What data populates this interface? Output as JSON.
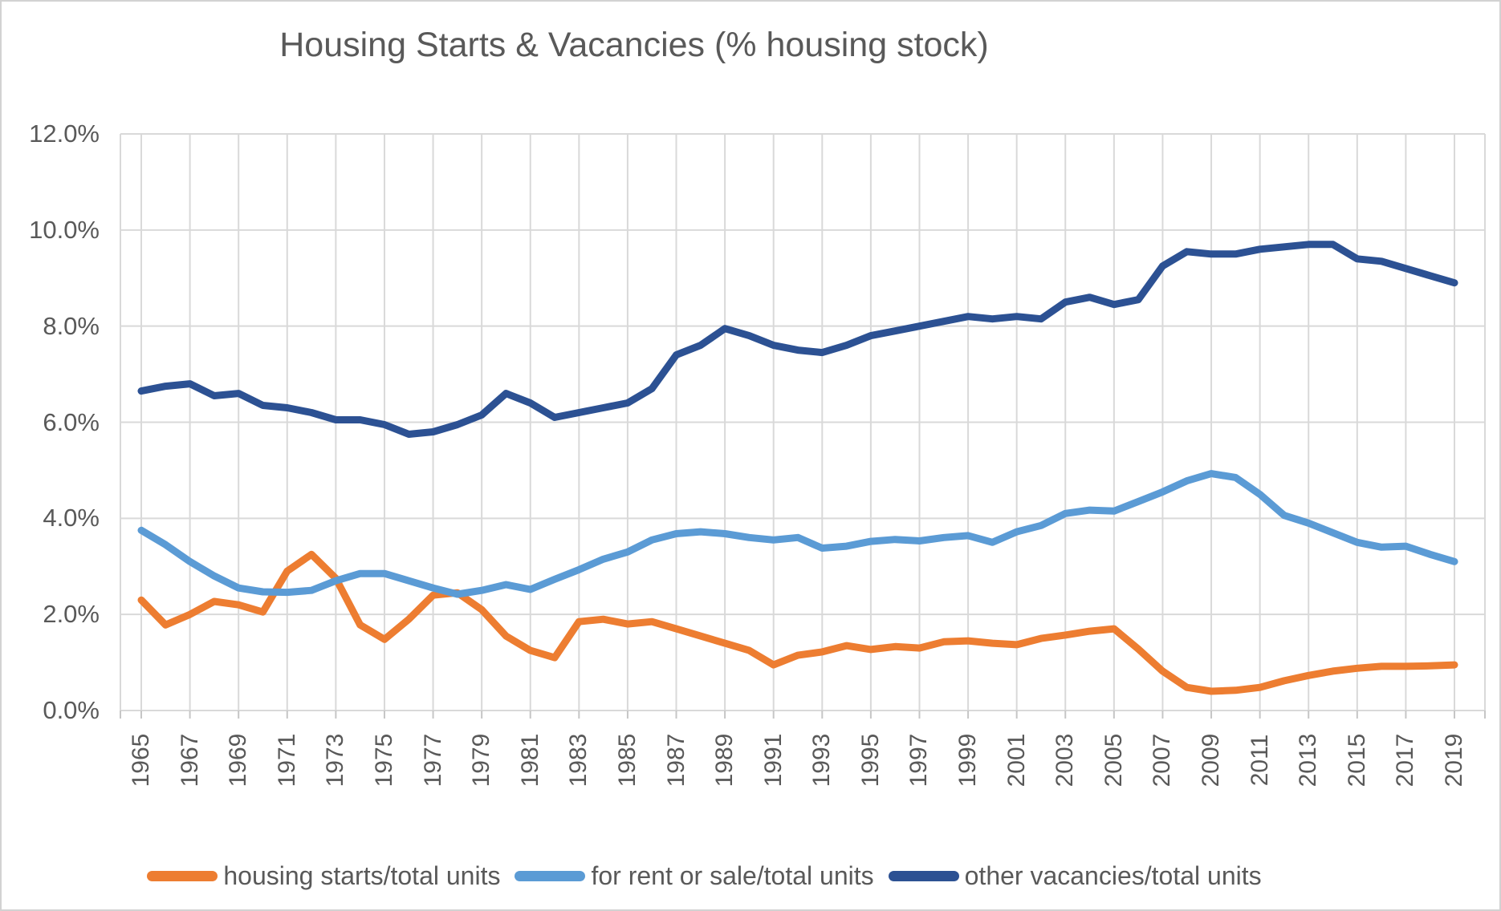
{
  "chart_data": {
    "type": "line",
    "title": "Housing Starts & Vacancies (% housing stock)",
    "xlabel": "",
    "ylabel": "",
    "ylim": [
      0,
      12
    ],
    "y_tick_step": 2,
    "grid": true,
    "legend_position": "bottom",
    "x_start": 1965,
    "x_end": 2019,
    "x_tick_labels": [
      "1965",
      "1967",
      "1969",
      "1971",
      "1973",
      "1975",
      "1977",
      "1979",
      "1981",
      "1983",
      "1985",
      "1987",
      "1989",
      "1991",
      "1993",
      "1995",
      "1997",
      "1999",
      "2001",
      "2003",
      "2005",
      "2007",
      "2009",
      "2011",
      "2013",
      "2015",
      "2017",
      "2019"
    ],
    "y_tick_labels": [
      "0.0%",
      "2.0%",
      "4.0%",
      "6.0%",
      "8.0%",
      "10.0%",
      "12.0%"
    ],
    "series": [
      {
        "name": "housing starts/total units",
        "color": "#ED7D31",
        "values": [
          2.3,
          1.78,
          2.0,
          2.27,
          2.2,
          2.05,
          2.9,
          3.25,
          2.75,
          1.78,
          1.48,
          1.9,
          2.4,
          2.45,
          2.1,
          1.55,
          1.25,
          1.1,
          1.85,
          1.9,
          1.8,
          1.85,
          1.7,
          1.55,
          1.4,
          1.25,
          0.95,
          1.15,
          1.22,
          1.35,
          1.27,
          1.33,
          1.3,
          1.43,
          1.45,
          1.4,
          1.37,
          1.5,
          1.57,
          1.65,
          1.7,
          1.28,
          0.82,
          0.48,
          0.4,
          0.42,
          0.48,
          0.62,
          0.73,
          0.82,
          0.88,
          0.92,
          0.92,
          0.93,
          0.95
        ]
      },
      {
        "name": "for rent or sale/total units",
        "color": "#5B9BD5",
        "values": [
          3.75,
          3.45,
          3.1,
          2.8,
          2.55,
          2.47,
          2.46,
          2.5,
          2.7,
          2.85,
          2.85,
          2.7,
          2.55,
          2.42,
          2.5,
          2.62,
          2.52,
          2.73,
          2.93,
          3.15,
          3.3,
          3.55,
          3.68,
          3.72,
          3.68,
          3.6,
          3.55,
          3.6,
          3.38,
          3.42,
          3.52,
          3.56,
          3.53,
          3.6,
          3.64,
          3.5,
          3.72,
          3.85,
          4.1,
          4.17,
          4.15,
          4.35,
          4.55,
          4.78,
          4.93,
          4.85,
          4.5,
          4.06,
          3.9,
          3.7,
          3.5,
          3.4,
          3.42,
          3.25,
          3.1
        ]
      },
      {
        "name": "other vacancies/total units",
        "color": "#2C5193",
        "values": [
          6.65,
          6.75,
          6.8,
          6.55,
          6.6,
          6.35,
          6.3,
          6.2,
          6.05,
          6.05,
          5.95,
          5.75,
          5.8,
          5.95,
          6.15,
          6.6,
          6.4,
          6.1,
          6.2,
          6.3,
          6.4,
          6.7,
          7.4,
          7.6,
          7.95,
          7.8,
          7.6,
          7.5,
          7.45,
          7.6,
          7.8,
          7.9,
          8.0,
          8.1,
          8.2,
          8.15,
          8.2,
          8.15,
          8.5,
          8.6,
          8.45,
          8.55,
          9.25,
          9.55,
          9.5,
          9.5,
          9.6,
          9.65,
          9.7,
          9.7,
          9.4,
          9.35,
          9.2,
          9.05,
          8.9
        ]
      }
    ],
    "styles": {
      "text_color": "#595959",
      "gridline_color": "#D9D9D9",
      "tick_color": "#C6C6C6",
      "frame_border_color": "#D2D2D2",
      "line_width": 9
    }
  }
}
